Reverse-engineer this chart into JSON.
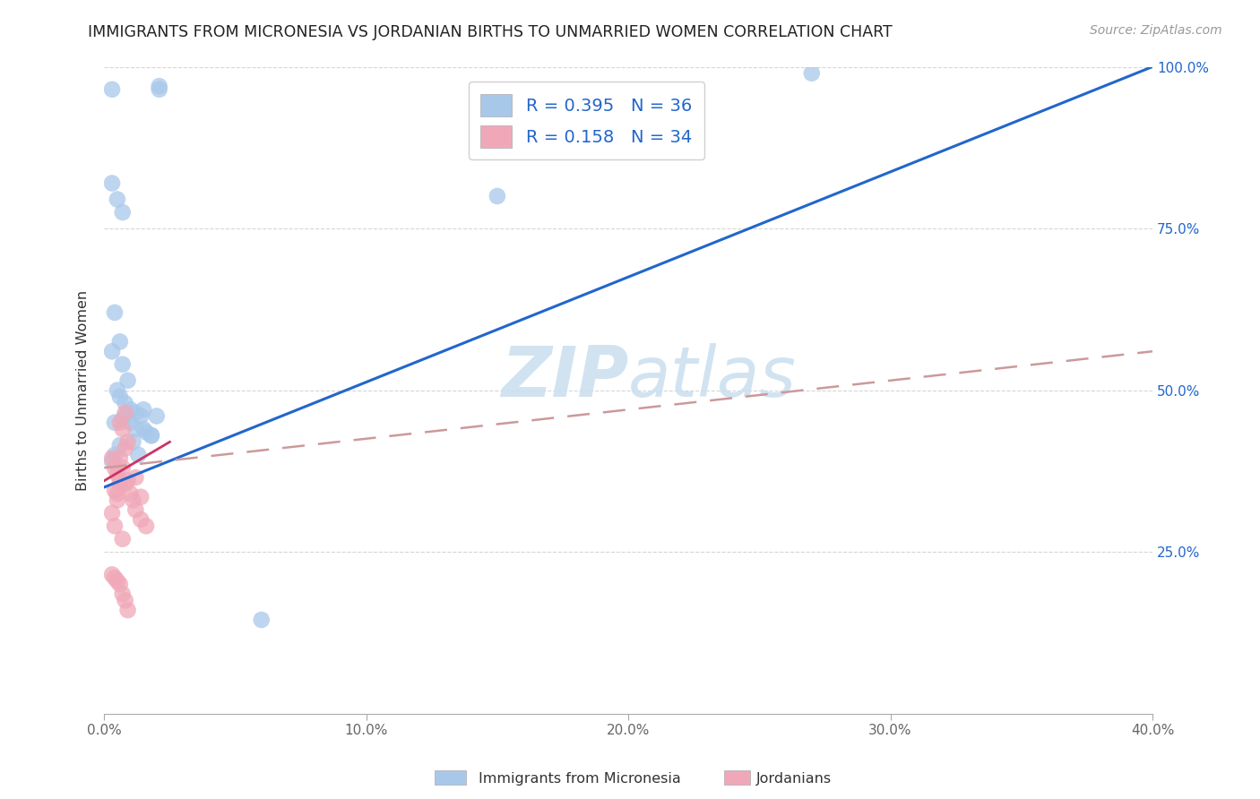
{
  "title": "IMMIGRANTS FROM MICRONESIA VS JORDANIAN BIRTHS TO UNMARRIED WOMEN CORRELATION CHART",
  "source": "Source: ZipAtlas.com",
  "xlabel_blue": "Immigrants from Micronesia",
  "xlabel_pink": "Jordanians",
  "ylabel": "Births to Unmarried Women",
  "xlim": [
    0.0,
    0.4
  ],
  "ylim": [
    0.0,
    1.0
  ],
  "xticks": [
    0.0,
    0.1,
    0.2,
    0.3,
    0.4
  ],
  "yticks": [
    0.25,
    0.5,
    0.75,
    1.0
  ],
  "ytick_labels_right": [
    "25.0%",
    "50.0%",
    "75.0%",
    "100.0%"
  ],
  "xtick_labels": [
    "0.0%",
    "10.0%",
    "20.0%",
    "30.0%",
    "40.0%"
  ],
  "blue_R": 0.395,
  "blue_N": 36,
  "pink_R": 0.158,
  "pink_N": 34,
  "blue_color": "#a8c8ea",
  "pink_color": "#f0a8b8",
  "blue_line_color": "#2266cc",
  "pink_line_color": "#cc3366",
  "pink_dash_color": "#cc9999",
  "watermark_color": "#cce0f0",
  "blue_scatter_x": [
    0.003,
    0.021,
    0.021,
    0.003,
    0.005,
    0.007,
    0.004,
    0.006,
    0.003,
    0.007,
    0.009,
    0.005,
    0.006,
    0.008,
    0.01,
    0.012,
    0.014,
    0.01,
    0.012,
    0.016,
    0.018,
    0.008,
    0.015,
    0.02,
    0.006,
    0.004,
    0.003,
    0.011,
    0.013,
    0.06,
    0.27,
    0.007,
    0.004,
    0.015,
    0.018,
    0.15
  ],
  "blue_scatter_y": [
    0.965,
    0.965,
    0.97,
    0.82,
    0.795,
    0.775,
    0.62,
    0.575,
    0.56,
    0.54,
    0.515,
    0.5,
    0.49,
    0.48,
    0.47,
    0.465,
    0.46,
    0.45,
    0.44,
    0.435,
    0.43,
    0.46,
    0.47,
    0.46,
    0.415,
    0.4,
    0.39,
    0.42,
    0.4,
    0.145,
    0.99,
    0.455,
    0.45,
    0.44,
    0.43,
    0.8
  ],
  "pink_scatter_x": [
    0.003,
    0.004,
    0.005,
    0.006,
    0.007,
    0.008,
    0.006,
    0.004,
    0.005,
    0.003,
    0.004,
    0.007,
    0.006,
    0.005,
    0.008,
    0.009,
    0.006,
    0.007,
    0.008,
    0.009,
    0.01,
    0.011,
    0.012,
    0.014,
    0.016,
    0.012,
    0.014,
    0.003,
    0.004,
    0.005,
    0.006,
    0.007,
    0.008,
    0.009
  ],
  "pink_scatter_y": [
    0.395,
    0.38,
    0.37,
    0.36,
    0.44,
    0.465,
    0.45,
    0.345,
    0.33,
    0.31,
    0.29,
    0.27,
    0.355,
    0.34,
    0.41,
    0.42,
    0.395,
    0.38,
    0.355,
    0.36,
    0.34,
    0.33,
    0.315,
    0.3,
    0.29,
    0.365,
    0.335,
    0.215,
    0.21,
    0.205,
    0.2,
    0.185,
    0.175,
    0.16
  ],
  "blue_line_x0": 0.0,
  "blue_line_x1": 0.4,
  "blue_line_y0": 0.35,
  "blue_line_y1": 1.0,
  "pink_line_x0": 0.0,
  "pink_line_x1": 0.4,
  "pink_line_y0": 0.38,
  "pink_line_y1": 0.56
}
